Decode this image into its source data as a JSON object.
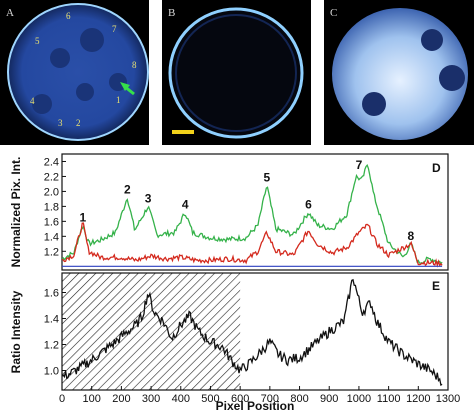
{
  "figure": {
    "panels": [
      {
        "label": "A",
        "numbers": [
          "1",
          "2",
          "3",
          "4",
          "5",
          "6",
          "7",
          "8"
        ]
      },
      {
        "label": "B"
      },
      {
        "label": "C"
      }
    ],
    "colors": {
      "green_trace": "#35b24a",
      "red_trace": "#d42a1e",
      "baseline": "#2b3fbf",
      "cell_glow": "#8fd0ff"
    }
  },
  "chart_data": [
    {
      "type": "line",
      "panel_label": "D",
      "ylabel": "Normalized Pix. Int.",
      "xlim": [
        0,
        1300
      ],
      "ylim": [
        0.95,
        2.5
      ],
      "yticks": [
        "1.2",
        "1.4",
        "1.6",
        "1.8",
        "2.0",
        "2.2",
        "2.4"
      ],
      "grid": false,
      "series": [
        {
          "color": "green",
          "points": [
            [
              0,
              1.1
            ],
            [
              40,
              1.18
            ],
            [
              70,
              1.55
            ],
            [
              90,
              1.3
            ],
            [
              130,
              1.35
            ],
            [
              180,
              1.45
            ],
            [
              220,
              1.92
            ],
            [
              245,
              1.48
            ],
            [
              290,
              1.8
            ],
            [
              320,
              1.42
            ],
            [
              380,
              1.45
            ],
            [
              415,
              1.72
            ],
            [
              440,
              1.45
            ],
            [
              500,
              1.38
            ],
            [
              560,
              1.36
            ],
            [
              620,
              1.38
            ],
            [
              660,
              1.55
            ],
            [
              690,
              2.08
            ],
            [
              720,
              1.5
            ],
            [
              780,
              1.42
            ],
            [
              830,
              1.72
            ],
            [
              860,
              1.55
            ],
            [
              910,
              1.5
            ],
            [
              960,
              1.7
            ],
            [
              990,
              2.2
            ],
            [
              1010,
              2.15
            ],
            [
              1030,
              2.38
            ],
            [
              1050,
              1.95
            ],
            [
              1100,
              1.3
            ],
            [
              1150,
              1.12
            ],
            [
              1175,
              1.3
            ],
            [
              1200,
              1.05
            ],
            [
              1240,
              1.1
            ],
            [
              1280,
              1.05
            ]
          ]
        },
        {
          "color": "red",
          "points": [
            [
              0,
              1.08
            ],
            [
              40,
              1.15
            ],
            [
              70,
              1.58
            ],
            [
              90,
              1.2
            ],
            [
              130,
              1.12
            ],
            [
              200,
              1.12
            ],
            [
              250,
              1.08
            ],
            [
              300,
              1.14
            ],
            [
              350,
              1.1
            ],
            [
              400,
              1.12
            ],
            [
              450,
              1.08
            ],
            [
              500,
              1.08
            ],
            [
              560,
              1.1
            ],
            [
              620,
              1.08
            ],
            [
              660,
              1.2
            ],
            [
              690,
              1.45
            ],
            [
              720,
              1.2
            ],
            [
              780,
              1.15
            ],
            [
              830,
              1.48
            ],
            [
              860,
              1.3
            ],
            [
              910,
              1.18
            ],
            [
              960,
              1.25
            ],
            [
              1000,
              1.45
            ],
            [
              1030,
              1.55
            ],
            [
              1060,
              1.3
            ],
            [
              1100,
              1.15
            ],
            [
              1175,
              1.3
            ],
            [
              1200,
              1.05
            ],
            [
              1280,
              1.04
            ]
          ]
        },
        {
          "color": "blue",
          "points": [
            [
              0,
              1.0
            ],
            [
              1280,
              1.0
            ]
          ]
        }
      ],
      "peak_labels": [
        {
          "text": "1",
          "x": 70,
          "y": 1.6
        },
        {
          "text": "2",
          "x": 220,
          "y": 1.97
        },
        {
          "text": "3",
          "x": 290,
          "y": 1.85
        },
        {
          "text": "4",
          "x": 415,
          "y": 1.77
        },
        {
          "text": "5",
          "x": 690,
          "y": 2.13
        },
        {
          "text": "6",
          "x": 830,
          "y": 1.77
        },
        {
          "text": "7",
          "x": 1000,
          "y": 2.3
        },
        {
          "text": "8",
          "x": 1175,
          "y": 1.35
        }
      ]
    },
    {
      "type": "line",
      "panel_label": "E",
      "xlabel": "Pixel Position",
      "ylabel": "Ratio Intensity",
      "xlim": [
        0,
        1300
      ],
      "ylim": [
        0.85,
        1.75
      ],
      "xticks": [
        "0",
        "100",
        "200",
        "300",
        "400",
        "500",
        "600",
        "700",
        "800",
        "900",
        "1000",
        "1100",
        "1200",
        "1300"
      ],
      "yticks": [
        "1.0",
        "1.2",
        "1.4",
        "1.6"
      ],
      "hatched_region": [
        0,
        600
      ],
      "grid": false,
      "series": [
        {
          "color": "black",
          "points": [
            [
              0,
              0.95
            ],
            [
              30,
              0.98
            ],
            [
              60,
              1.02
            ],
            [
              100,
              1.08
            ],
            [
              140,
              1.15
            ],
            [
              180,
              1.22
            ],
            [
              220,
              1.3
            ],
            [
              250,
              1.35
            ],
            [
              270,
              1.42
            ],
            [
              290,
              1.6
            ],
            [
              310,
              1.45
            ],
            [
              340,
              1.38
            ],
            [
              370,
              1.25
            ],
            [
              400,
              1.35
            ],
            [
              430,
              1.42
            ],
            [
              460,
              1.3
            ],
            [
              500,
              1.22
            ],
            [
              540,
              1.18
            ],
            [
              570,
              1.08
            ],
            [
              600,
              1.0
            ],
            [
              630,
              1.05
            ],
            [
              660,
              1.12
            ],
            [
              700,
              1.22
            ],
            [
              730,
              1.12
            ],
            [
              760,
              1.08
            ],
            [
              800,
              1.1
            ],
            [
              850,
              1.2
            ],
            [
              900,
              1.3
            ],
            [
              950,
              1.38
            ],
            [
              980,
              1.72
            ],
            [
              1010,
              1.45
            ],
            [
              1040,
              1.52
            ],
            [
              1060,
              1.38
            ],
            [
              1100,
              1.22
            ],
            [
              1150,
              1.12
            ],
            [
              1200,
              1.05
            ],
            [
              1240,
              1.0
            ],
            [
              1280,
              0.92
            ]
          ]
        }
      ]
    }
  ]
}
